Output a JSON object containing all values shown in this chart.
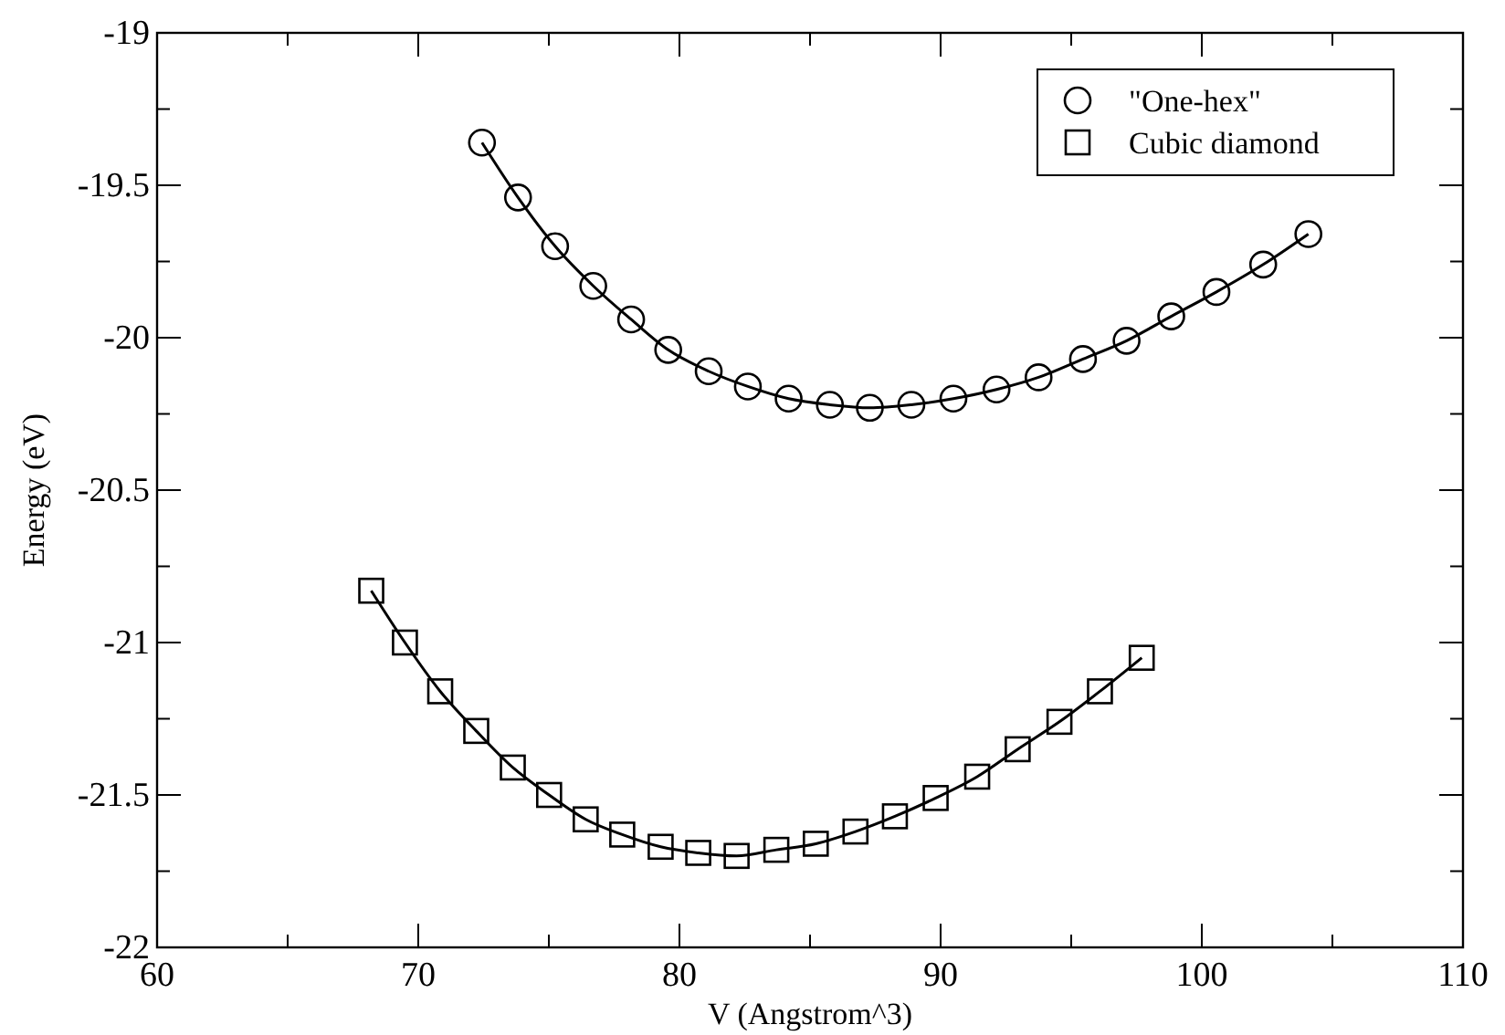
{
  "chart_data": {
    "type": "line",
    "xlabel": "V (Angstrom^3)",
    "ylabel": "Energy (eV)",
    "xlim": [
      60,
      110
    ],
    "xticks": [
      60,
      {
        "value": 65,
        "label": null
      },
      70,
      {
        "value": 75,
        "label": null
      },
      80,
      {
        "value": 85,
        "label": null
      },
      90,
      {
        "value": 95,
        "label": null
      },
      100,
      {
        "value": 105,
        "label": null
      },
      110
    ],
    "ylim": [
      -22,
      -19
    ],
    "yticks": [
      -22,
      {
        "value": -21.75,
        "label": null
      },
      -21.5,
      {
        "value": -21.25,
        "label": null
      },
      -21,
      {
        "value": -20.75,
        "label": null
      },
      -20.5,
      {
        "value": -20.25,
        "label": null
      },
      -20,
      {
        "value": -19.75,
        "label": null
      },
      -19.5,
      {
        "value": -19.25,
        "label": null
      },
      -19
    ],
    "grid": false,
    "legend": "top right",
    "line_style": "solid",
    "series": [
      {
        "name": "\"One-hex\"",
        "color": "#000000",
        "marker": "circle",
        "x": [
          72.44,
          73.82,
          75.24,
          76.7,
          78.15,
          79.57,
          81.12,
          82.62,
          84.18,
          85.76,
          87.29,
          88.88,
          90.49,
          92.14,
          93.75,
          95.45,
          97.12,
          98.83,
          100.56,
          102.35,
          104.08
        ],
        "values": [
          -19.36,
          -19.54,
          -19.7,
          -19.83,
          -19.94,
          -20.04,
          -20.11,
          -20.16,
          -20.2,
          -20.22,
          -20.23,
          -20.22,
          -20.2,
          -20.17,
          -20.13,
          -20.07,
          -20.01,
          -19.93,
          -19.85,
          -19.76,
          -19.66
        ]
      },
      {
        "name": "Cubic diamond",
        "color": "#000000",
        "marker": "square",
        "x": [
          68.2,
          69.49,
          70.84,
          72.22,
          73.62,
          75.01,
          76.41,
          77.81,
          79.28,
          80.72,
          82.19,
          83.71,
          85.22,
          86.74,
          88.25,
          89.81,
          91.4,
          92.95,
          94.55,
          96.1,
          97.7
        ],
        "values": [
          -20.83,
          -21.0,
          -21.16,
          -21.29,
          -21.41,
          -21.5,
          -21.58,
          -21.63,
          -21.67,
          -21.69,
          -21.7,
          -21.68,
          -21.66,
          -21.62,
          -21.57,
          -21.51,
          -21.44,
          -21.35,
          -21.26,
          -21.16,
          -21.05
        ]
      }
    ]
  }
}
